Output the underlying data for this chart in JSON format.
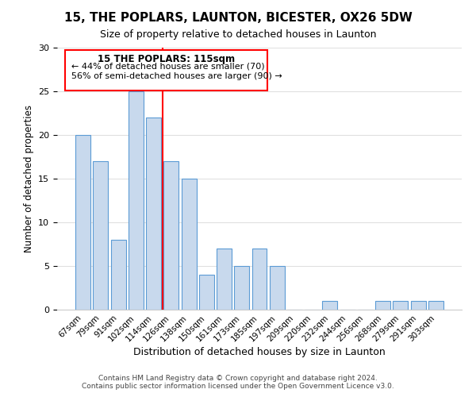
{
  "title": "15, THE POPLARS, LAUNTON, BICESTER, OX26 5DW",
  "subtitle": "Size of property relative to detached houses in Launton",
  "xlabel": "Distribution of detached houses by size in Launton",
  "ylabel": "Number of detached properties",
  "bar_color": "#c8d9ed",
  "bar_edge_color": "#5b9bd5",
  "categories": [
    "67sqm",
    "79sqm",
    "91sqm",
    "102sqm",
    "114sqm",
    "126sqm",
    "138sqm",
    "150sqm",
    "161sqm",
    "173sqm",
    "185sqm",
    "197sqm",
    "209sqm",
    "220sqm",
    "232sqm",
    "244sqm",
    "256sqm",
    "268sqm",
    "279sqm",
    "291sqm",
    "303sqm"
  ],
  "values": [
    20,
    17,
    8,
    25,
    22,
    17,
    15,
    4,
    7,
    5,
    7,
    5,
    0,
    0,
    1,
    0,
    0,
    1,
    1,
    1,
    1
  ],
  "ylim": [
    0,
    30
  ],
  "yticks": [
    0,
    5,
    10,
    15,
    20,
    25,
    30
  ],
  "property_index": 4,
  "annotation_title": "15 THE POPLARS: 115sqm",
  "annotation_line1": "← 44% of detached houses are smaller (70)",
  "annotation_line2": "56% of semi-detached houses are larger (90) →",
  "footer1": "Contains HM Land Registry data © Crown copyright and database right 2024.",
  "footer2": "Contains public sector information licensed under the Open Government Licence v3.0.",
  "background_color": "#ffffff",
  "grid_color": "#e0e0e0",
  "annotation_box_color": "red"
}
